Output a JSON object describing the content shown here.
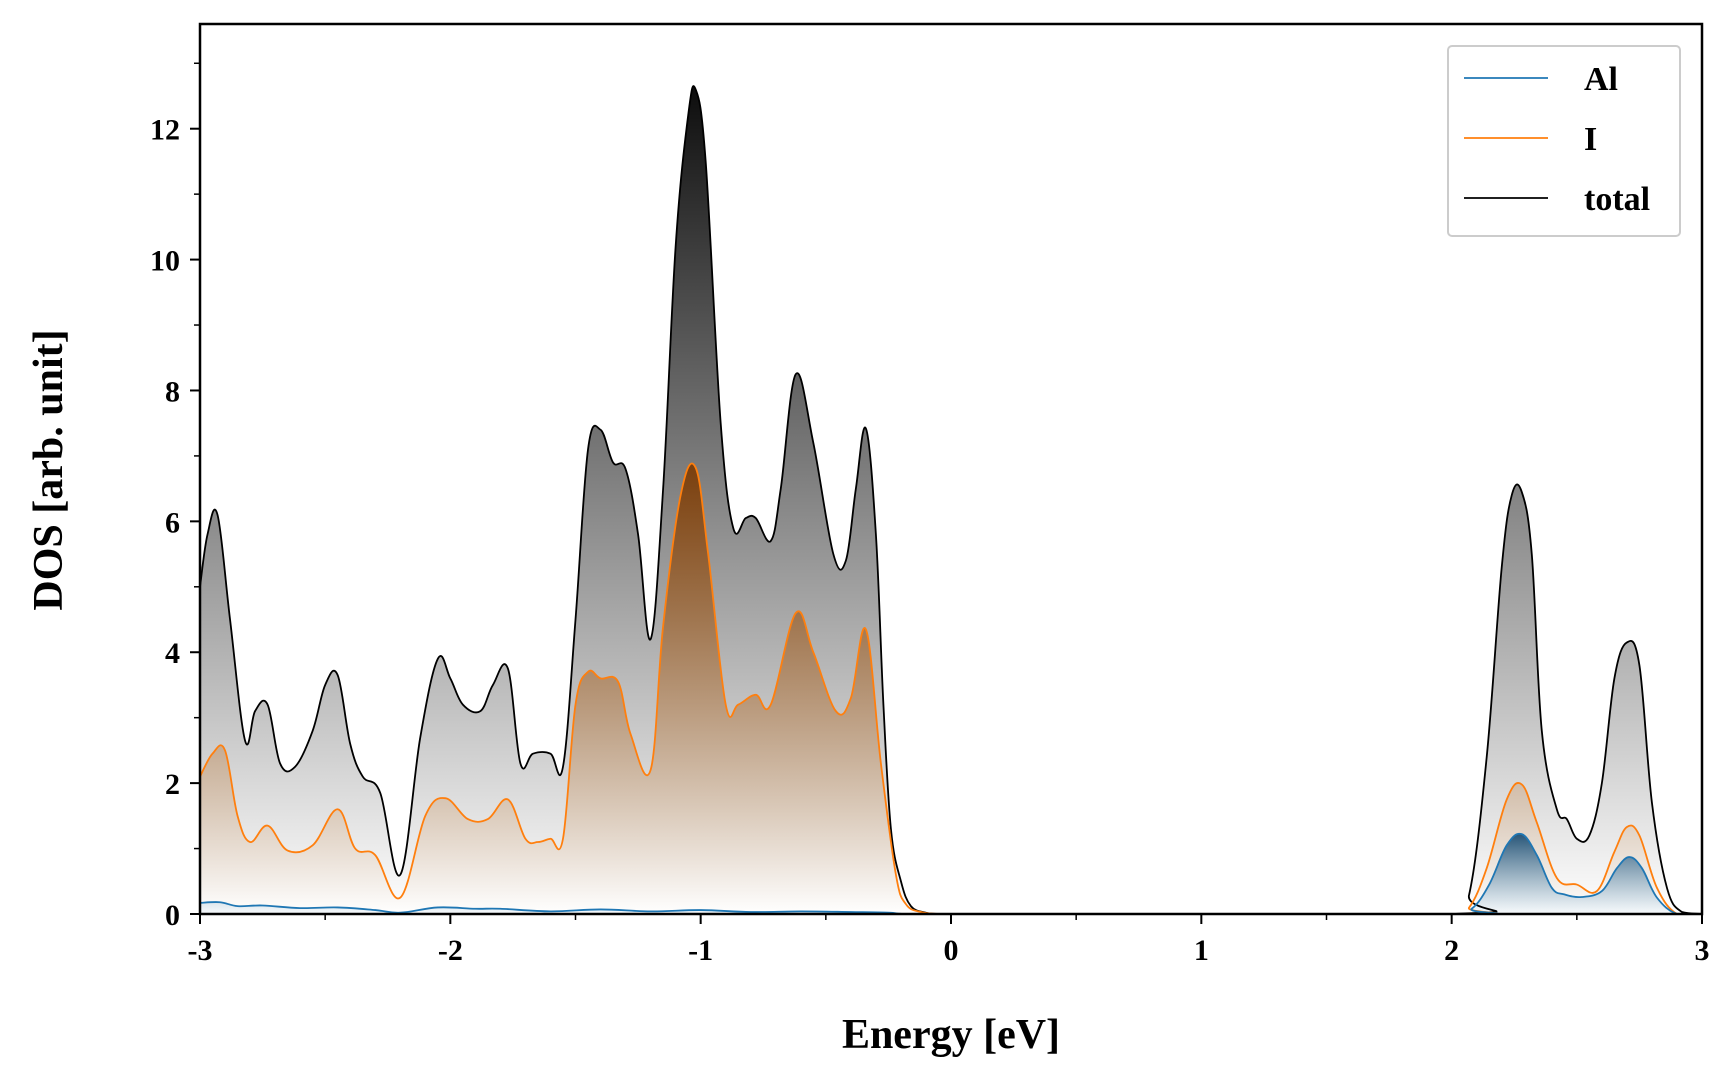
{
  "chart_data": {
    "type": "area",
    "xlabel": "Energy [eV]",
    "ylabel": "DOS [arb. unit]",
    "xlim": [
      -3,
      3
    ],
    "ylim": [
      0,
      13.6
    ],
    "xticks": [
      -3,
      -2,
      -1,
      0,
      1,
      2,
      3
    ],
    "xtick_labels": [
      "-3",
      "-2",
      "-1",
      "0",
      "1",
      "2",
      "3"
    ],
    "yticks": [
      0,
      2,
      4,
      6,
      8,
      10,
      12
    ],
    "ytick_labels": [
      "0",
      "2",
      "4",
      "6",
      "8",
      "10",
      "12"
    ],
    "grid": false,
    "legend_position": "top-right",
    "series": [
      {
        "name": "Al",
        "color": "#1f77b4",
        "fill": "blue-gradient",
        "x": [
          -3.0,
          -2.92,
          -2.85,
          -2.75,
          -2.6,
          -2.45,
          -2.3,
          -2.2,
          -2.05,
          -1.9,
          -1.8,
          -1.6,
          -1.4,
          -1.2,
          -1.0,
          -0.8,
          -0.6,
          -0.4,
          -0.25,
          -0.18,
          0.0,
          2.0,
          2.08,
          2.15,
          2.22,
          2.28,
          2.34,
          2.4,
          2.45,
          2.52,
          2.6,
          2.66,
          2.71,
          2.76,
          2.82,
          2.9,
          3.0
        ],
        "y": [
          0.17,
          0.18,
          0.12,
          0.13,
          0.09,
          0.1,
          0.06,
          0.02,
          0.1,
          0.08,
          0.08,
          0.04,
          0.07,
          0.04,
          0.06,
          0.03,
          0.04,
          0.03,
          0.02,
          0.0,
          0.0,
          0.0,
          0.08,
          0.45,
          1.05,
          1.22,
          0.9,
          0.4,
          0.3,
          0.26,
          0.35,
          0.7,
          0.87,
          0.7,
          0.25,
          0.0,
          0.0
        ]
      },
      {
        "name": "I",
        "color": "#ff7f0e",
        "fill": "orange-gradient",
        "x": [
          -3.0,
          -2.95,
          -2.9,
          -2.85,
          -2.8,
          -2.73,
          -2.65,
          -2.55,
          -2.45,
          -2.38,
          -2.3,
          -2.2,
          -2.1,
          -2.02,
          -1.93,
          -1.85,
          -1.77,
          -1.7,
          -1.65,
          -1.6,
          -1.55,
          -1.5,
          -1.45,
          -1.4,
          -1.33,
          -1.28,
          -1.2,
          -1.15,
          -1.08,
          -1.02,
          -0.97,
          -0.9,
          -0.85,
          -0.78,
          -0.72,
          -0.62,
          -0.55,
          -0.46,
          -0.4,
          -0.34,
          -0.28,
          -0.22,
          -0.18,
          -0.12,
          -0.05,
          0.0,
          2.0,
          2.07,
          2.14,
          2.22,
          2.28,
          2.34,
          2.42,
          2.5,
          2.58,
          2.65,
          2.7,
          2.75,
          2.82,
          2.9,
          3.0
        ],
        "y": [
          2.1,
          2.45,
          2.5,
          1.5,
          1.1,
          1.35,
          0.97,
          1.05,
          1.6,
          1.0,
          0.9,
          0.25,
          1.5,
          1.77,
          1.45,
          1.45,
          1.75,
          1.15,
          1.1,
          1.15,
          1.15,
          3.2,
          3.7,
          3.6,
          3.55,
          2.75,
          2.2,
          4.4,
          6.4,
          6.82,
          5.5,
          3.2,
          3.2,
          3.35,
          3.2,
          4.6,
          4.0,
          3.1,
          3.3,
          4.35,
          2.3,
          0.6,
          0.15,
          0.03,
          0.0,
          0.0,
          0.0,
          0.1,
          0.7,
          1.75,
          1.98,
          1.4,
          0.55,
          0.45,
          0.35,
          0.95,
          1.33,
          1.2,
          0.4,
          0.0,
          0.0
        ]
      },
      {
        "name": "total",
        "color": "#000000",
        "fill": "gray-gradient",
        "x": [
          -3.0,
          -2.97,
          -2.93,
          -2.88,
          -2.82,
          -2.78,
          -2.73,
          -2.68,
          -2.62,
          -2.55,
          -2.5,
          -2.45,
          -2.4,
          -2.35,
          -2.28,
          -2.2,
          -2.12,
          -2.05,
          -2.0,
          -1.95,
          -1.88,
          -1.83,
          -1.77,
          -1.72,
          -1.67,
          -1.6,
          -1.55,
          -1.5,
          -1.45,
          -1.4,
          -1.35,
          -1.3,
          -1.25,
          -1.2,
          -1.15,
          -1.1,
          -1.05,
          -1.02,
          -0.98,
          -0.92,
          -0.87,
          -0.82,
          -0.78,
          -0.72,
          -0.68,
          -0.62,
          -0.55,
          -0.47,
          -0.42,
          -0.38,
          -0.34,
          -0.3,
          -0.27,
          -0.24,
          -0.2,
          -0.16,
          -0.1,
          -0.05,
          0.0,
          2.0,
          2.07,
          2.14,
          2.2,
          2.24,
          2.28,
          2.32,
          2.36,
          2.42,
          2.46,
          2.5,
          2.55,
          2.6,
          2.65,
          2.7,
          2.75,
          2.8,
          2.86,
          2.92,
          3.0
        ],
        "y": [
          5.0,
          5.8,
          6.1,
          4.5,
          2.65,
          3.1,
          3.2,
          2.3,
          2.25,
          2.8,
          3.5,
          3.65,
          2.6,
          2.1,
          1.85,
          0.6,
          2.7,
          3.9,
          3.6,
          3.2,
          3.1,
          3.5,
          3.75,
          2.3,
          2.45,
          2.45,
          2.25,
          4.5,
          7.1,
          7.4,
          6.9,
          6.8,
          5.8,
          4.2,
          6.5,
          10.2,
          12.2,
          12.6,
          11.5,
          7.5,
          5.9,
          6.05,
          6.05,
          5.7,
          6.5,
          8.25,
          7.2,
          5.5,
          5.4,
          6.5,
          7.42,
          5.8,
          3.2,
          1.3,
          0.5,
          0.12,
          0.02,
          0.0,
          0.0,
          0.0,
          0.3,
          2.4,
          5.3,
          6.4,
          6.45,
          5.5,
          2.8,
          1.6,
          1.45,
          1.15,
          1.2,
          2.0,
          3.6,
          4.15,
          3.8,
          1.7,
          0.4,
          0.03,
          0.0
        ]
      }
    ]
  }
}
